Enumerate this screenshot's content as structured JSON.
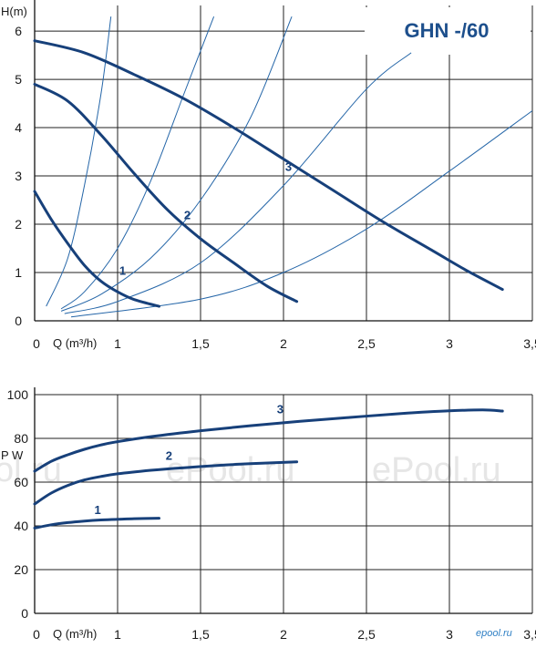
{
  "chart_data": [
    {
      "type": "line",
      "title": "GHN -/60",
      "ylabel": "H(m)",
      "xlabel": "Q (m³/h)",
      "xlim": [
        0.5,
        3.5
      ],
      "ylim": [
        0,
        6.2
      ],
      "x_tick_labels": [
        "0",
        "1",
        "1,5",
        "2",
        "2,5",
        "3",
        "3,5"
      ],
      "y_tick_labels": [
        "0",
        "1",
        "2",
        "3",
        "4",
        "5",
        "6"
      ],
      "grid": true,
      "colors": {
        "curve": "#17407a",
        "system_curve": "#2566a8",
        "grid": "#222222",
        "title": "#1d4f8c"
      },
      "series": [
        {
          "name": "1",
          "x": [
            0.5,
            0.6,
            0.7,
            0.8,
            0.9,
            1.0,
            1.1,
            1.25
          ],
          "y": [
            2.68,
            2.1,
            1.6,
            1.15,
            0.82,
            0.6,
            0.44,
            0.3
          ],
          "label_at": [
            1.03,
            0.95
          ]
        },
        {
          "name": "2",
          "x": [
            0.5,
            0.7,
            0.9,
            1.1,
            1.3,
            1.5,
            1.7,
            1.9,
            2.08
          ],
          "y": [
            4.9,
            4.55,
            3.85,
            3.05,
            2.3,
            1.7,
            1.2,
            0.72,
            0.4
          ],
          "label_at": [
            1.42,
            2.1
          ]
        },
        {
          "name": "3",
          "x": [
            0.5,
            0.8,
            1.1,
            1.4,
            1.7,
            2.0,
            2.3,
            2.6,
            2.9,
            3.1,
            3.32
          ],
          "y": [
            5.8,
            5.55,
            5.1,
            4.6,
            4.0,
            3.35,
            2.7,
            2.05,
            1.45,
            1.05,
            0.65
          ],
          "label_at": [
            2.03,
            3.1
          ]
        }
      ],
      "system_curves": [
        {
          "x": [
            0.57,
            0.7,
            0.8,
            0.9,
            0.96
          ],
          "y": [
            0.3,
            1.3,
            2.8,
            4.7,
            6.3
          ]
        },
        {
          "x": [
            0.66,
            0.8,
            1.0,
            1.2,
            1.4,
            1.58
          ],
          "y": [
            0.25,
            0.6,
            1.5,
            2.9,
            4.7,
            6.3
          ]
        },
        {
          "x": [
            0.66,
            0.9,
            1.2,
            1.5,
            1.8,
            2.05
          ],
          "y": [
            0.2,
            0.55,
            1.3,
            2.5,
            4.2,
            6.3
          ]
        },
        {
          "x": [
            0.68,
            1.0,
            1.5,
            2.0,
            2.5,
            2.77
          ],
          "y": [
            0.15,
            0.4,
            1.2,
            2.8,
            4.8,
            5.55
          ]
        },
        {
          "x": [
            0.72,
            1.5,
            2.0,
            2.5,
            3.0,
            3.5
          ],
          "y": [
            0.08,
            0.45,
            1.0,
            1.9,
            3.1,
            4.35
          ]
        }
      ]
    },
    {
      "type": "line",
      "ylabel": "P W",
      "xlabel": "Q (m³/h)",
      "xlim": [
        0.5,
        3.5
      ],
      "ylim": [
        0,
        100
      ],
      "x_tick_labels": [
        "0",
        "1",
        "1,5",
        "2",
        "2,5",
        "3",
        "3,5"
      ],
      "y_tick_labels": [
        "0",
        "20",
        "40",
        "60",
        "80",
        "100"
      ],
      "grid": true,
      "series": [
        {
          "name": "1",
          "x": [
            0.5,
            0.6,
            0.7,
            0.8,
            0.9,
            1.0,
            1.1,
            1.25
          ],
          "y": [
            39,
            40.5,
            41.5,
            42.2,
            42.7,
            43,
            43.3,
            43.5
          ],
          "label_at": [
            0.88,
            45.5
          ]
        },
        {
          "name": "2",
          "x": [
            0.5,
            0.6,
            0.7,
            0.8,
            0.9,
            1.0,
            1.2,
            1.4,
            1.6,
            1.8,
            2.08
          ],
          "y": [
            50,
            55,
            58.5,
            61,
            62.6,
            63.8,
            65.4,
            66.6,
            67.6,
            68.4,
            69.3
          ],
          "label_at": [
            1.31,
            70.3
          ]
        },
        {
          "name": "3",
          "x": [
            0.5,
            0.6,
            0.7,
            0.8,
            0.9,
            1.0,
            1.2,
            1.5,
            1.8,
            2.1,
            2.4,
            2.7,
            3.0,
            3.2,
            3.32
          ],
          "y": [
            65,
            69.5,
            72.5,
            75,
            77,
            78.5,
            80.8,
            83.5,
            85.8,
            87.8,
            89.6,
            91.3,
            92.6,
            93,
            92.5
          ],
          "label_at": [
            1.98,
            91.5
          ]
        }
      ]
    }
  ],
  "watermark": {
    "text": "ePool.ru",
    "repeat": [
      "ol.ru",
      "ePool.ru",
      "ePool.ru"
    ],
    "brand": "epool.ru"
  }
}
